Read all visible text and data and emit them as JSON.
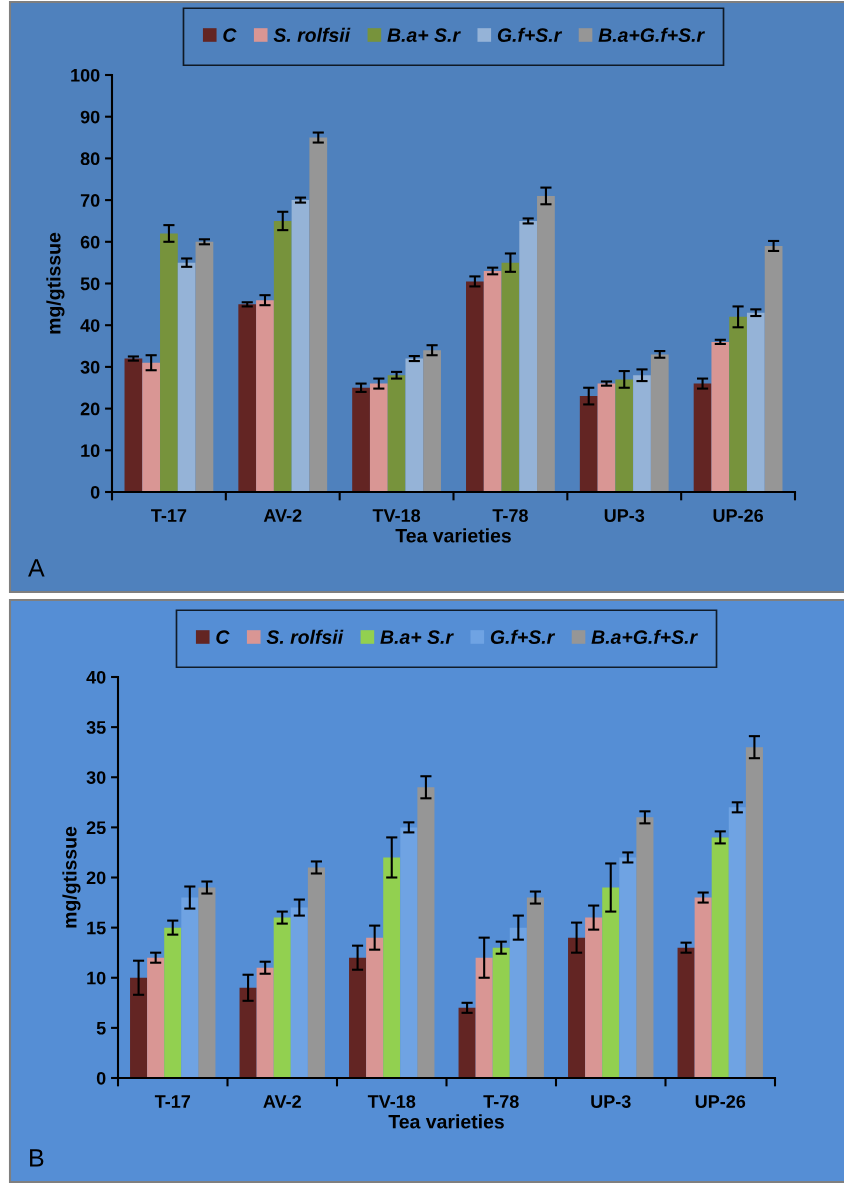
{
  "chart_data": [
    {
      "type": "bar",
      "categories": [
        "T-17",
        "AV-2",
        "TV-18",
        "T-78",
        "UP-3",
        "UP-26"
      ],
      "xlabel": "Tea varieties",
      "ylabel": "mg/gtissue",
      "ylim": [
        0,
        100
      ],
      "yticks": [
        0,
        10,
        20,
        30,
        40,
        50,
        60,
        70,
        80,
        90,
        100
      ],
      "legend": "top",
      "grid": false,
      "annotations": [
        "A"
      ],
      "series": [
        {
          "name": "C",
          "color": "#632523",
          "values": [
            32,
            45,
            25,
            50.5,
            23,
            26
          ],
          "errors": [
            0.5,
            0.5,
            1,
            1.2,
            2,
            1.2
          ]
        },
        {
          "name": "S. rolfsii",
          "color": "#d99694",
          "values": [
            31,
            46,
            26,
            53,
            26,
            36
          ],
          "errors": [
            1.8,
            1.2,
            1.2,
            0.8,
            0.5,
            0.5
          ]
        },
        {
          "name": "B.a+ S.r",
          "color": "#77933c",
          "values": [
            62,
            65,
            28,
            55,
            27,
            42
          ],
          "errors": [
            2,
            2.2,
            0.8,
            2.2,
            2,
            2.5
          ]
        },
        {
          "name": "G.f+S.r",
          "color": "#95b3d7",
          "values": [
            55,
            70,
            32,
            65,
            28,
            43
          ],
          "errors": [
            1,
            0.6,
            0.6,
            0.6,
            1.4,
            0.8
          ]
        },
        {
          "name": "B.a+G.f+S.r",
          "color": "#969696",
          "values": [
            60,
            85,
            34,
            71,
            33,
            59
          ],
          "errors": [
            0.6,
            1.2,
            1.2,
            2,
            0.8,
            1.2
          ]
        }
      ]
    },
    {
      "type": "bar",
      "categories": [
        "T-17",
        "AV-2",
        "TV-18",
        "T-78",
        "UP-3",
        "UP-26"
      ],
      "xlabel": "Tea varieties",
      "ylabel": "mg/gtissue",
      "ylim": [
        0,
        40
      ],
      "yticks": [
        0,
        5,
        10,
        15,
        20,
        25,
        30,
        35,
        40
      ],
      "legend": "top",
      "grid": false,
      "annotations": [
        "B"
      ],
      "series": [
        {
          "name": "C",
          "color": "#632523",
          "values": [
            10,
            9,
            12,
            7,
            14,
            13
          ],
          "errors": [
            1.7,
            1.3,
            1.2,
            0.5,
            1.5,
            0.5
          ]
        },
        {
          "name": "S. rolfsii",
          "color": "#d99694",
          "values": [
            12,
            11,
            14,
            12,
            16,
            18
          ],
          "errors": [
            0.5,
            0.6,
            1.2,
            2,
            1.2,
            0.5
          ]
        },
        {
          "name": "B.a+ S.r",
          "color": "#92d050",
          "values": [
            15,
            16,
            22,
            13,
            19,
            24
          ],
          "errors": [
            0.7,
            0.6,
            2,
            0.6,
            2.4,
            0.6
          ]
        },
        {
          "name": "G.f+S.r",
          "color": "#6fa3e3",
          "values": [
            18,
            17,
            25,
            15,
            22,
            27
          ],
          "errors": [
            1.1,
            0.8,
            0.5,
            1.2,
            0.5,
            0.5
          ]
        },
        {
          "name": "B.a+G.f+S.r",
          "color": "#969696",
          "values": [
            19,
            21,
            29,
            18,
            26,
            33
          ],
          "errors": [
            0.6,
            0.6,
            1.1,
            0.6,
            0.6,
            1.1
          ]
        }
      ]
    }
  ]
}
